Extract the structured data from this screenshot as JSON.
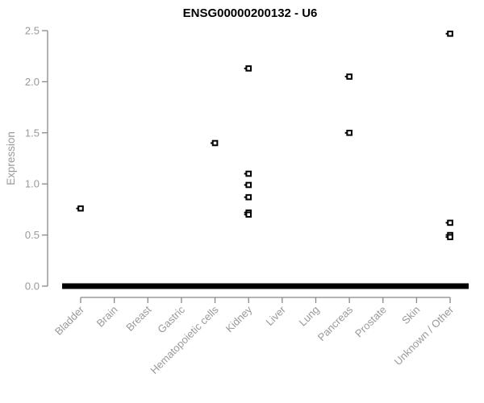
{
  "chart_data": {
    "type": "scatter",
    "title": "ENSG00000200132 - U6",
    "xlabel": "",
    "ylabel": "Expression",
    "ylim": [
      0.0,
      2.5
    ],
    "ytick_labels": [
      "0.0",
      "0.5",
      "1.0",
      "1.5",
      "2.0",
      "2.5"
    ],
    "ytick_values": [
      0.0,
      0.5,
      1.0,
      1.5,
      2.0,
      2.5
    ],
    "grid": false,
    "legend": null,
    "categories": [
      "Bladder",
      "Brain",
      "Breast",
      "Gastric",
      "Hematopoietic cells",
      "Kidney",
      "Liver",
      "Lung",
      "Pancreas",
      "Prostate",
      "Skin",
      "Unknown / Other"
    ],
    "zero_bars": {
      "present_for_all_categories": true,
      "value": 0.0,
      "description": "dense overlapping samples at zero expression drawn as thick black dashes"
    },
    "points": [
      {
        "category": "Bladder",
        "value": 0.76
      },
      {
        "category": "Hematopoietic cells",
        "value": 1.4
      },
      {
        "category": "Kidney",
        "value": 2.13
      },
      {
        "category": "Kidney",
        "value": 1.1
      },
      {
        "category": "Kidney",
        "value": 0.99
      },
      {
        "category": "Kidney",
        "value": 0.87
      },
      {
        "category": "Kidney",
        "value": 0.72
      },
      {
        "category": "Kidney",
        "value": 0.7
      },
      {
        "category": "Pancreas",
        "value": 2.05
      },
      {
        "category": "Pancreas",
        "value": 1.5
      },
      {
        "category": "Unknown / Other",
        "value": 2.47
      },
      {
        "category": "Unknown / Other",
        "value": 0.62
      },
      {
        "category": "Unknown / Other",
        "value": 0.5
      },
      {
        "category": "Unknown / Other",
        "value": 0.48
      }
    ],
    "colors": {
      "marker": "#000000",
      "marker_fill": "#ffffff",
      "axis_line": "#888888",
      "tick_text": "#999999",
      "axis_title": "#999999",
      "title_text": "#000000",
      "background": "#ffffff"
    }
  }
}
